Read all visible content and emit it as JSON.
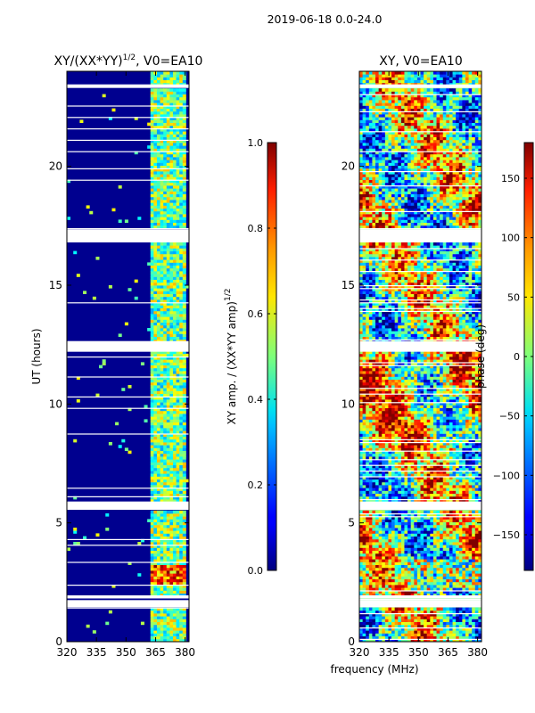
{
  "figure": {
    "suptitle": "2019-06-18 0.0-24.0",
    "shared_xlabel": "frequency (MHz)"
  },
  "chart_data": [
    {
      "type": "heatmap",
      "title": "XY/(XX*YY)",
      "title_exponent": "1/2",
      "title_suffix": ", V0=EA10",
      "xlabel": "",
      "ylabel": "UT (hours)",
      "xlim": [
        320,
        382
      ],
      "ylim": [
        0,
        24
      ],
      "xticks": [
        320,
        335,
        350,
        365,
        380
      ],
      "yticks": [
        0,
        5,
        10,
        15,
        20
      ],
      "colormap": "jet",
      "colorbar": {
        "label": "XY amp. / (XX*YY amp)",
        "label_exponent": "1/2",
        "range": [
          0.0,
          1.0
        ],
        "ticks": [
          "0.0",
          "0.2",
          "0.4",
          "0.6",
          "0.8",
          "1.0"
        ]
      },
      "blank_hour_bands": [
        [
          1.45,
          1.75
        ],
        [
          1.82,
          1.95
        ],
        [
          5.55,
          5.9
        ],
        [
          12.2,
          12.65
        ],
        [
          16.8,
          17.35
        ],
        [
          23.3,
          23.45
        ]
      ],
      "bright_band_freq_range_mhz": [
        362,
        380
      ],
      "saturated_hours": [
        2.4,
        3.3
      ]
    },
    {
      "type": "heatmap",
      "title": "XY, V0=EA10",
      "xlabel": "frequency (MHz)",
      "ylabel": "",
      "xlim": [
        320,
        382
      ],
      "ylim": [
        0,
        24
      ],
      "xticks": [
        320,
        335,
        350,
        365,
        380
      ],
      "yticks": [
        0,
        5,
        10,
        15,
        20
      ],
      "colormap": "jet",
      "colorbar": {
        "label": "phase (deg)",
        "range": [
          -180,
          180
        ],
        "ticks": [
          "−150",
          "−100",
          "−50",
          "0",
          "50",
          "100",
          "150"
        ]
      },
      "blank_hour_bands": [
        [
          1.45,
          1.75
        ],
        [
          1.82,
          1.95
        ],
        [
          5.55,
          5.9
        ],
        [
          12.2,
          12.65
        ],
        [
          16.8,
          17.35
        ],
        [
          23.3,
          23.45
        ]
      ]
    }
  ]
}
